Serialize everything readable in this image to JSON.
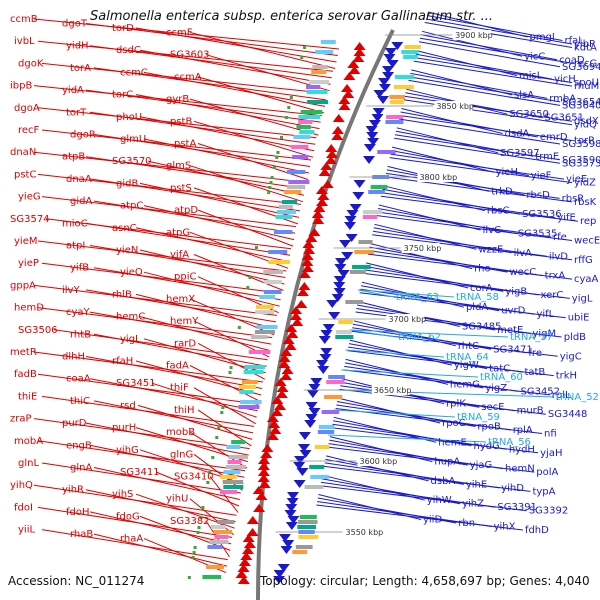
{
  "title": "Salmonella enterica subsp. enterica serovar Gallinarum str. ...",
  "accession_text": "Accession: NC_011274",
  "info_text": "Topology: circular; Length: 4,658,697 bp; Genes: 4,040",
  "colors": {
    "forward_strand": "#e00000",
    "reverse_strand": "#1a1acc",
    "rna_genes": "#22aadd",
    "backbone": "#777777"
  },
  "kbp_markers": [
    "3900 kbp",
    "3850 kbp",
    "3800 kbp",
    "3750 kbp",
    "3700 kbp",
    "3650 kbp",
    "3600 kbp",
    "3550 kbp"
  ],
  "left_genes": [
    "ccmB",
    "dgoT",
    "torD",
    "ccmF",
    "ivbL",
    "yidH",
    "dsdC",
    "SG3603",
    "dgoK",
    "torA",
    "ccmC",
    "ccmA",
    "ibpB",
    "yidA",
    "torC",
    "gyrB",
    "dgoA",
    "torT",
    "phoU",
    "pstB",
    "recF",
    "dgoR",
    "glmU",
    "pstA",
    "dnaN",
    "atpB",
    "SG3570",
    "glmS",
    "pstC",
    "dnaA",
    "gidB",
    "pstS",
    "yieG",
    "gidA",
    "atpC",
    "atpD",
    "SG3574",
    "mioC",
    "asnC",
    "atpG",
    "yieM",
    "atpI",
    "yieN",
    "yifA",
    "yieP",
    "yifB",
    "yieO",
    "ppiC",
    "gppA",
    "ilvY",
    "rhlB",
    "hemX",
    "hemD",
    "cyaY",
    "hemC",
    "hemY",
    "SG3506",
    "rhtB",
    "yigI",
    "rarD",
    "metR",
    "dlhH",
    "rfaH",
    "fadA",
    "fadB",
    "coaA",
    "SG3451",
    "thiF",
    "thiE",
    "thiC",
    "rsd",
    "thiH",
    "zraP",
    "purD",
    "purH",
    "mobB",
    "mobA",
    "engB",
    "yihG",
    "glnG",
    "glnL",
    "glnA",
    "SG3411",
    "SG3410",
    "yihQ",
    "yihR",
    "yihS",
    "yihU",
    "fdoI",
    "fdoH",
    "fdoG",
    "SG3382",
    "yiiL",
    "rhaB",
    "rhaA"
  ],
  "right_genes": [
    "pmgI",
    "rfaL",
    "yibP",
    "kdtA",
    "yicC",
    "coaD",
    "recG",
    "SG3694",
    "misL",
    "yicH",
    "spoU",
    "rhuM",
    "slsA",
    "rmbA",
    "SG3654",
    "SG3640",
    "SG3650",
    "SG3651",
    "dsdX",
    "yidQ",
    "dsdA",
    "emrD",
    "torR",
    "SG3598",
    "SG3597",
    "trmE",
    "SG3590",
    "SG3573",
    "yieH",
    "yieF",
    "yieE",
    "yidZ",
    "trkD",
    "rbsD",
    "rbsR",
    "rbsK",
    "rbsC",
    "SG3536",
    "yifE",
    "rep",
    "ilvC",
    "SG3535",
    "rfe",
    "wecE",
    "wzzE",
    "ilvA",
    "ilvD",
    "rffG",
    "rho",
    "wecC",
    "trxA",
    "cyaA",
    "corA",
    "yigB",
    "xerC",
    "yigL",
    "pldA",
    "uvrD",
    "yifL",
    "ubiE",
    "SG3485",
    "metE",
    "yigM",
    "pldB",
    "rhtC",
    "SG3471",
    "fre",
    "yigC",
    "yigW",
    "tatC",
    "tatB",
    "trkH",
    "hemG",
    "yigZ",
    "SG3452",
    "rplL",
    "rplK",
    "secE",
    "murB",
    "SG3448",
    "rpoC",
    "rpoB",
    "rplA",
    "nfi",
    "hemE",
    "hydG",
    "hydH",
    "yjaH",
    "hupA",
    "yjaG",
    "hemN",
    "polA",
    "dsbA",
    "yihE",
    "yihD",
    "typA",
    "yihW",
    "yihZ",
    "SG3391",
    "SG3392",
    "yiiD",
    "rbn",
    "yihX",
    "fdhD"
  ],
  "rna_genes": [
    "tRNA_63",
    "tRNA_62",
    "tRNA_64",
    "tRNA_58",
    "tRNA_59",
    "tRNA_60",
    "tRNA_56",
    "tRNA_57",
    "tRNA_52"
  ]
}
